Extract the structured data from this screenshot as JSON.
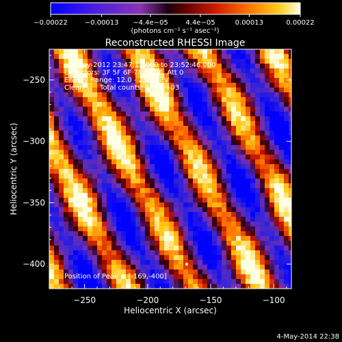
{
  "chart_data": {
    "type": "heatmap",
    "title": "Reconstructed RHESSI Image",
    "xlabel": "Heliocentric X (arcsec)",
    "ylabel": "Heliocentric Y (arcsec)",
    "xlim": [
      -278,
      -86
    ],
    "ylim": [
      -420,
      -225
    ],
    "x_ticks": [
      -250,
      -200,
      -150,
      -100
    ],
    "y_ticks": [
      -250,
      -300,
      -350,
      -400
    ],
    "x_tick_labels": [
      "−250",
      "−200",
      "−150",
      "−100"
    ],
    "y_tick_labels": [
      "−250",
      "−300",
      "−350",
      "−400"
    ],
    "colorbar": {
      "range": [
        -0.00022,
        0.00022
      ],
      "ticks": [
        -0.00022,
        -0.00013,
        -4.4e-05,
        4.4e-05,
        0.00013,
        0.00022
      ],
      "tick_labels": [
        "−0.00022",
        "−0.00013",
        "−4.4e−05",
        "4.4e−05",
        "0.00013",
        "0.00022"
      ],
      "unit_label": "(photons cm⁻² s⁻¹ asec⁻²)",
      "colors": [
        "#0000ff",
        "#5b1fd6",
        "#8a35b0",
        "#000000",
        "#c01010",
        "#ff6a00",
        "#ffcc10",
        "#ffffe0"
      ]
    },
    "annotations": [
      "3-May-2012 23:47:12.000 to 23:52:46.000",
      "Detectors: 3F 5F 6F 7F 8F 9F, Att 0",
      "Energy Range: 12.0 - 25.0 keV",
      "Clean",
      "Total counts: 5.56E+03",
      "Position of Peak = [-169,-400]"
    ],
    "peak": {
      "x": -169,
      "y": -400
    },
    "stripe_angle_deg": 62
  },
  "footer_timestamp": "4-May-2014 22:38"
}
